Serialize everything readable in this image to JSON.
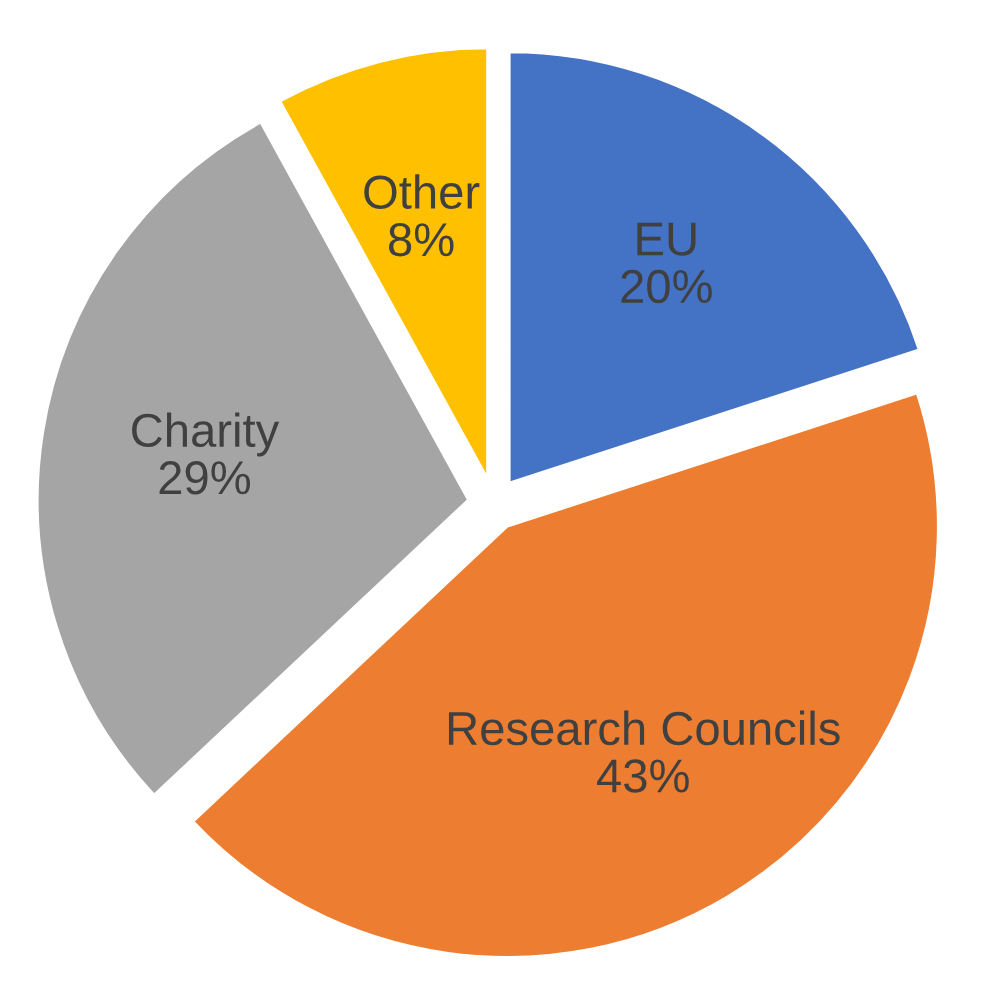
{
  "chart_data": {
    "type": "pie",
    "categories": [
      "EU",
      "Research Councils",
      "Charity",
      "Other"
    ],
    "values": [
      20,
      43,
      29,
      8
    ],
    "value_labels": [
      "20%",
      "43%",
      "29%",
      "8%"
    ],
    "colors": [
      "#4472c4",
      "#ed7d31",
      "#a5a5a5",
      "#ffc000"
    ],
    "legend": false
  }
}
